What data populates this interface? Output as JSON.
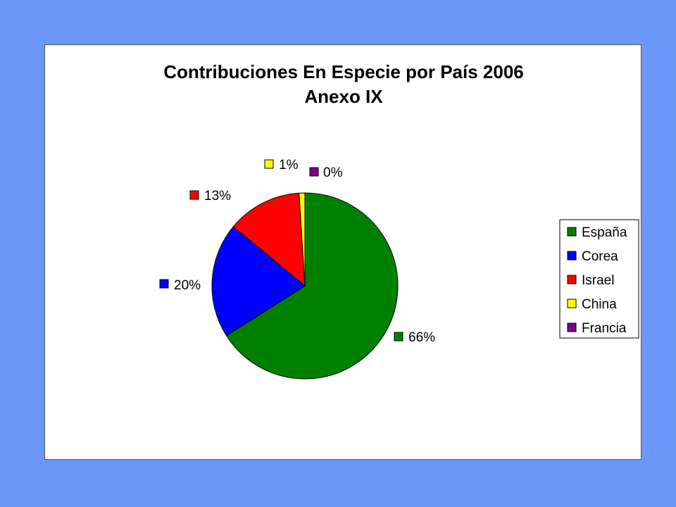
{
  "chart_data": {
    "type": "pie",
    "title": "Contribuciones En Especie por País 2006",
    "subtitle": "Anexo IX",
    "categories": [
      "España",
      "Corea",
      "Israel",
      "China",
      "Francia"
    ],
    "values": [
      66,
      20,
      13,
      1,
      0
    ],
    "data_labels": [
      "66%",
      "20%",
      "13%",
      "1%",
      "0%"
    ],
    "colors": [
      "#008000",
      "#0000ff",
      "#ff0000",
      "#ffff00",
      "#800080"
    ],
    "legend_position": "right",
    "start_angle": "12 o'clock, clockwise"
  }
}
